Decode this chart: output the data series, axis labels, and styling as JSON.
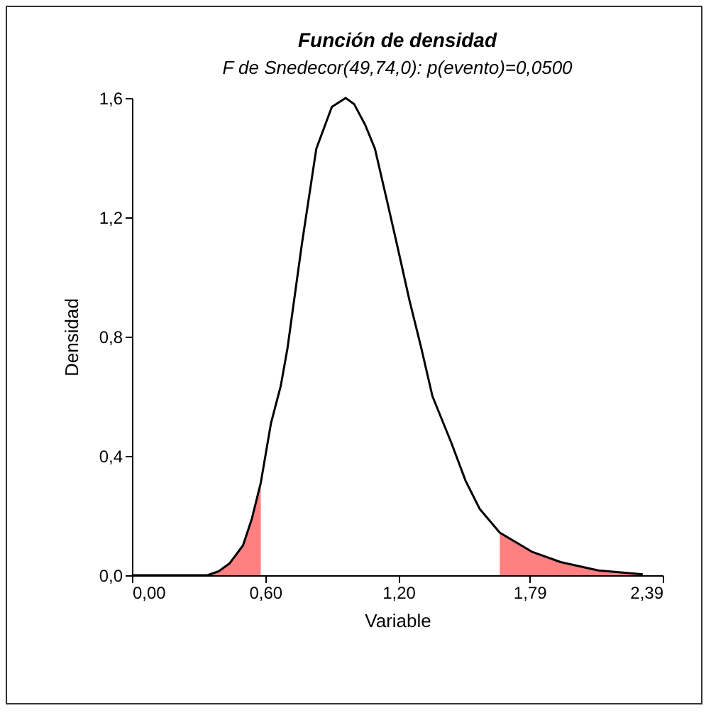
{
  "chart_data": {
    "type": "line",
    "title": "Función de densidad",
    "subtitle": "F de Snedecor(49,74,0): p(evento)=0,0500",
    "xlabel": "Variable",
    "ylabel": "Densidad",
    "xlim": [
      0,
      2.39
    ],
    "xticks": [
      {
        "value": 0,
        "label": "0,00"
      },
      {
        "value": 0.6,
        "label": "0,60"
      },
      {
        "value": 1.2,
        "label": "1,20"
      },
      {
        "value": 1.79,
        "label": "1,79"
      },
      {
        "value": 2.39,
        "label": "2,39"
      }
    ],
    "ylim": [
      0,
      1.6
    ],
    "yticks": [
      {
        "value": 0,
        "label": "0,0"
      },
      {
        "value": 0.4,
        "label": "0,4"
      },
      {
        "value": 0.8,
        "label": "0,8"
      },
      {
        "value": 1.2,
        "label": "1,2"
      },
      {
        "value": 1.6,
        "label": "1,6"
      }
    ],
    "grid": false,
    "marker": "none",
    "line_style": "solid",
    "series": [
      {
        "type": "area",
        "color": "#ff8080",
        "x": [
          0.34,
          0.39,
          0.44,
          0.5,
          0.54,
          0.58
        ],
        "values": [
          0,
          0.013,
          0.04,
          0.1,
          0.19,
          0.31
        ]
      },
      {
        "type": "area",
        "color": "#ff8080",
        "x": [
          1.656,
          1.8,
          1.93,
          2.1,
          2.3
        ],
        "values": [
          0.143,
          0.079,
          0.044,
          0.016,
          0.003
        ]
      },
      {
        "type": "line",
        "color": "#000000",
        "x": [
          0,
          0.34,
          0.39,
          0.44,
          0.5,
          0.54,
          0.58,
          0.626,
          0.67,
          0.7,
          0.765,
          0.83,
          0.9,
          0.962,
          1.0,
          1.05,
          1.094,
          1.15,
          1.193,
          1.25,
          1.3,
          1.353,
          1.438,
          1.502,
          1.566,
          1.656,
          1.8,
          1.93,
          2.1,
          2.3
        ],
        "values": [
          0,
          0,
          0.013,
          0.04,
          0.1,
          0.19,
          0.31,
          0.51,
          0.635,
          0.76,
          1.11,
          1.43,
          1.57,
          1.6,
          1.58,
          1.51,
          1.43,
          1.25,
          1.11,
          0.92,
          0.77,
          0.6,
          0.444,
          0.317,
          0.222,
          0.143,
          0.079,
          0.044,
          0.016,
          0.003
        ]
      }
    ]
  }
}
